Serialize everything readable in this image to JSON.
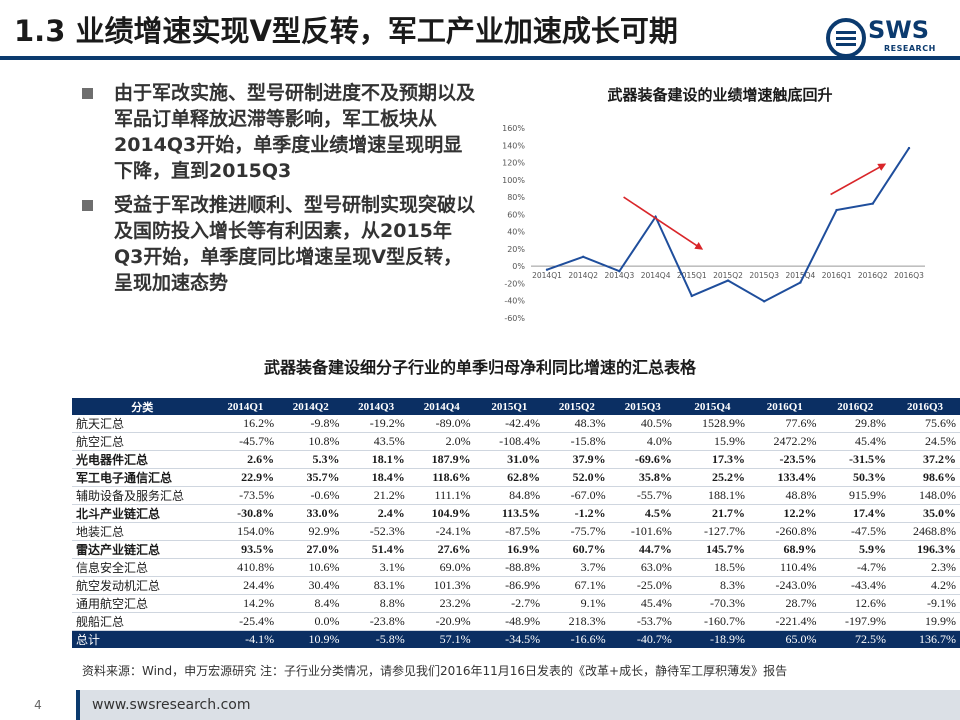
{
  "title": "1.3 业绩增速实现V型反转，军工产业加速成长可期",
  "logo": {
    "text": "SWS",
    "sub": "RESEARCH",
    "color": "#0b3a6e"
  },
  "bullets": [
    "由于军改实施、型号研制进度不及预期以及军品订单释放迟滞等影响，军工板块从2014Q3开始，单季度业绩增速呈现明显下降，直到2015Q3",
    "受益于军改推进顺利、型号研制实现突破以及国防投入增长等有利因素，从2015年Q3开始，单季度同比增速呈现V型反转，呈现加速态势"
  ],
  "chart_data": {
    "type": "line",
    "title": "武器装备建设的业绩增速触底回升",
    "categories": [
      "2014Q1",
      "2014Q2",
      "2014Q3",
      "2014Q4",
      "2015Q1",
      "2015Q2",
      "2015Q3",
      "2015Q4",
      "2016Q1",
      "2016Q2",
      "2016Q3"
    ],
    "yticks": [
      "160%",
      "140%",
      "120%",
      "100%",
      "80%",
      "60%",
      "40%",
      "20%",
      "0%",
      "-20%",
      "-40%",
      "-60%"
    ],
    "ylim": [
      -60,
      160
    ],
    "series": [
      {
        "values": [
          -4.1,
          10.9,
          -5.8,
          57.1,
          -34.5,
          -16.6,
          -40.7,
          -18.9,
          65.0,
          72.5,
          136.7
        ],
        "color": "#1f4e9c"
      }
    ],
    "annotations": [
      {
        "type": "arrow-down",
        "color": "#d9262a"
      },
      {
        "type": "arrow-up",
        "color": "#d9262a"
      }
    ]
  },
  "table": {
    "title": "武器装备建设细分子行业的单季归母净利同比增速的汇总表格",
    "headers": [
      "分类",
      "2014Q1",
      "2014Q2",
      "2014Q3",
      "2014Q4",
      "2015Q1",
      "2015Q2",
      "2015Q3",
      "2015Q4",
      "2016Q1",
      "2016Q2",
      "2016Q3"
    ],
    "rows": [
      {
        "bold": false,
        "cells": [
          "航天汇总",
          "16.2%",
          "-9.8%",
          "-19.2%",
          "-89.0%",
          "-42.4%",
          "48.3%",
          "40.5%",
          "1528.9%",
          "77.6%",
          "29.8%",
          "75.6%"
        ]
      },
      {
        "bold": false,
        "cells": [
          "航空汇总",
          "-45.7%",
          "10.8%",
          "43.5%",
          "2.0%",
          "-108.4%",
          "-15.8%",
          "4.0%",
          "15.9%",
          "2472.2%",
          "45.4%",
          "24.5%"
        ]
      },
      {
        "bold": true,
        "cells": [
          "光电器件汇总",
          "2.6%",
          "5.3%",
          "18.1%",
          "187.9%",
          "31.0%",
          "37.9%",
          "-69.6%",
          "17.3%",
          "-23.5%",
          "-31.5%",
          "37.2%"
        ]
      },
      {
        "bold": true,
        "cells": [
          "军工电子通信汇总",
          "22.9%",
          "35.7%",
          "18.4%",
          "118.6%",
          "62.8%",
          "52.0%",
          "35.8%",
          "25.2%",
          "133.4%",
          "50.3%",
          "98.6%"
        ]
      },
      {
        "bold": false,
        "cells": [
          "辅助设备及服务汇总",
          "-73.5%",
          "-0.6%",
          "21.2%",
          "111.1%",
          "84.8%",
          "-67.0%",
          "-55.7%",
          "188.1%",
          "48.8%",
          "915.9%",
          "148.0%"
        ]
      },
      {
        "bold": true,
        "cells": [
          "北斗产业链汇总",
          "-30.8%",
          "33.0%",
          "2.4%",
          "104.9%",
          "113.5%",
          "-1.2%",
          "4.5%",
          "21.7%",
          "12.2%",
          "17.4%",
          "35.0%"
        ]
      },
      {
        "bold": false,
        "cells": [
          "地装汇总",
          "154.0%",
          "92.9%",
          "-52.3%",
          "-24.1%",
          "-87.5%",
          "-75.7%",
          "-101.6%",
          "-127.7%",
          "-260.8%",
          "-47.5%",
          "2468.8%"
        ]
      },
      {
        "bold": true,
        "cells": [
          "雷达产业链汇总",
          "93.5%",
          "27.0%",
          "51.4%",
          "27.6%",
          "16.9%",
          "60.7%",
          "44.7%",
          "145.7%",
          "68.9%",
          "5.9%",
          "196.3%"
        ]
      },
      {
        "bold": false,
        "cells": [
          "信息安全汇总",
          "410.8%",
          "10.6%",
          "3.1%",
          "69.0%",
          "-88.8%",
          "3.7%",
          "63.0%",
          "18.5%",
          "110.4%",
          "-4.7%",
          "2.3%"
        ]
      },
      {
        "bold": false,
        "cells": [
          "航空发动机汇总",
          "24.4%",
          "30.4%",
          "83.1%",
          "101.3%",
          "-86.9%",
          "67.1%",
          "-25.0%",
          "8.3%",
          "-243.0%",
          "-43.4%",
          "4.2%"
        ]
      },
      {
        "bold": false,
        "cells": [
          "通用航空汇总",
          "14.2%",
          "8.4%",
          "8.8%",
          "23.2%",
          "-2.7%",
          "9.1%",
          "45.4%",
          "-70.3%",
          "28.7%",
          "12.6%",
          "-9.1%"
        ]
      },
      {
        "bold": false,
        "cells": [
          "舰船汇总",
          "-25.4%",
          "0.0%",
          "-23.8%",
          "-20.9%",
          "-48.9%",
          "218.3%",
          "-53.7%",
          "-160.7%",
          "-221.4%",
          "-197.9%",
          "19.9%"
        ]
      }
    ],
    "total": [
      "总计",
      "-4.1%",
      "10.9%",
      "-5.8%",
      "57.1%",
      "-34.5%",
      "-16.6%",
      "-40.7%",
      "-18.9%",
      "65.0%",
      "72.5%",
      "136.7%"
    ]
  },
  "source": "资料来源：Wind，申万宏源研究    注：子行业分类情况，请参见我们2016年11月16日发表的《改革+成长，静待军工厚积薄发》报告",
  "footer": {
    "page": "4",
    "website": "www.swsresearch.com"
  }
}
